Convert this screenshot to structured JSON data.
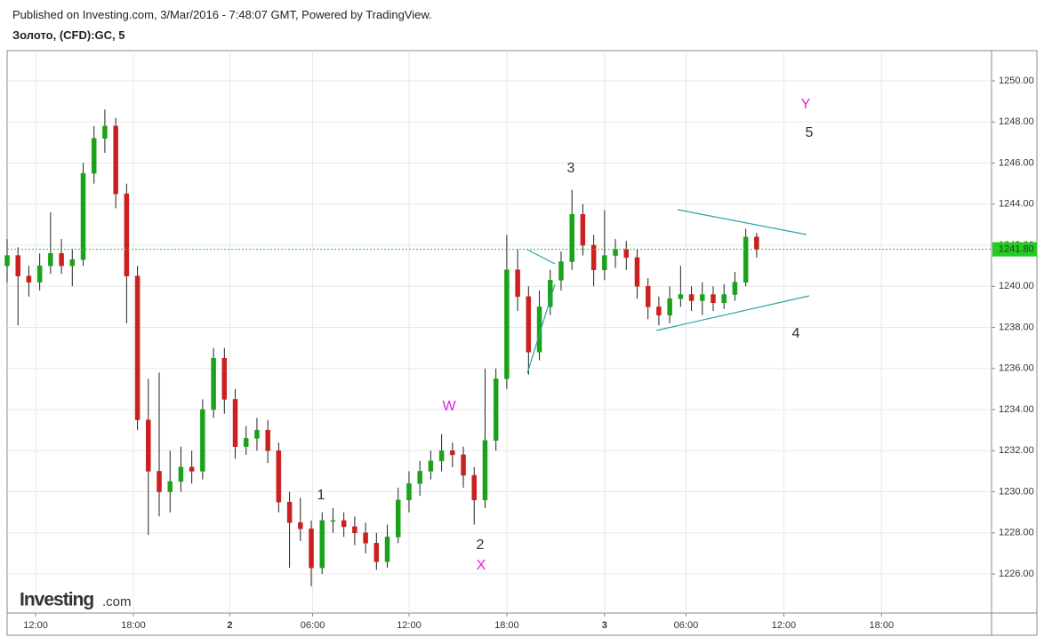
{
  "header": {
    "published": "Published on Investing.com, 3/Mar/2016 - 7:48:07 GMT, Powered by TradingView.",
    "symbol": "Золото, (CFD):GC, 5"
  },
  "logo": {
    "name": "Investing",
    "suffix": ".com"
  },
  "chart_data": {
    "type": "candlestick",
    "xlim": [
      0,
      725
    ],
    "xticks": [
      {
        "value": 21,
        "label": "12:00"
      },
      {
        "value": 93,
        "label": "18:00"
      },
      {
        "value": 164,
        "label": "2"
      },
      {
        "value": 225,
        "label": "06:00"
      },
      {
        "value": 296,
        "label": "12:00"
      },
      {
        "value": 368,
        "label": "18:00"
      },
      {
        "value": 440,
        "label": "3"
      },
      {
        "value": 500,
        "label": "06:00"
      },
      {
        "value": 572,
        "label": "12:00"
      },
      {
        "value": 644,
        "label": "18:00"
      }
    ],
    "ylim": [
      1224.1,
      1251.47
    ],
    "yticks": [
      {
        "value": 1226,
        "label": "1226.00"
      },
      {
        "value": 1228,
        "label": "1228.00"
      },
      {
        "value": 1230,
        "label": "1230.00"
      },
      {
        "value": 1232,
        "label": "1232.00"
      },
      {
        "value": 1234,
        "label": "1234.00"
      },
      {
        "value": 1236,
        "label": "1236.00"
      },
      {
        "value": 1238,
        "label": "1238.00"
      },
      {
        "value": 1240,
        "label": "1240.00"
      },
      {
        "value": 1242,
        "label": "1242.00"
      },
      {
        "value": 1244,
        "label": "1244.00"
      },
      {
        "value": 1246,
        "label": "1246.00"
      },
      {
        "value": 1248,
        "label": "1248.00"
      },
      {
        "value": 1250,
        "label": "1250.00"
      }
    ],
    "grid": true,
    "up_color": "#1aa31a",
    "down_color": "#cc2020",
    "last_price": {
      "value": 1241.8,
      "label": "1241.80"
    },
    "last_price_color": "#22cc22",
    "x": [
      0,
      8,
      16,
      24,
      32,
      40,
      48,
      56,
      64,
      72,
      80,
      88,
      96,
      104,
      112,
      120,
      128,
      136,
      144,
      152,
      160,
      168,
      176,
      184,
      192,
      200,
      208,
      216,
      224,
      232,
      240,
      248,
      256,
      264,
      272,
      280,
      288,
      296,
      304,
      312,
      320,
      328,
      336,
      344,
      352,
      360,
      368,
      376,
      384,
      392,
      400,
      408,
      416,
      424,
      432,
      440,
      448,
      456,
      464,
      472,
      480,
      488,
      496,
      504,
      512,
      520,
      528,
      536,
      544,
      552
    ],
    "open": [
      1241.0,
      1241.5,
      1240.5,
      1240.2,
      1241.0,
      1241.6,
      1241.0,
      1241.3,
      1245.5,
      1247.2,
      1247.8,
      1244.5,
      1240.5,
      1233.5,
      1231.0,
      1230.0,
      1230.5,
      1231.2,
      1231.0,
      1234.0,
      1236.5,
      1234.5,
      1232.2,
      1232.6,
      1233.0,
      1232.0,
      1229.5,
      1228.5,
      1228.2,
      1226.3,
      1228.6,
      1228.6,
      1228.3,
      1228.0,
      1227.5,
      1226.6,
      1227.8,
      1229.6,
      1230.4,
      1231.0,
      1231.5,
      1232.0,
      1231.8,
      1230.8,
      1229.6,
      1232.5,
      1235.5,
      1240.8,
      1239.5,
      1236.8,
      1239.0,
      1240.3,
      1241.2,
      1243.5,
      1242.0,
      1240.8,
      1241.5,
      1241.8,
      1241.4,
      1240.0,
      1239.0,
      1238.6,
      1239.4,
      1239.6,
      1239.3,
      1239.6,
      1239.2,
      1239.6,
      1240.2,
      1242.4
    ],
    "high": [
      1242.3,
      1241.9,
      1241.0,
      1241.6,
      1243.6,
      1242.3,
      1241.8,
      1246.0,
      1247.8,
      1248.6,
      1248.2,
      1245.0,
      1241.0,
      1235.5,
      1235.8,
      1232.0,
      1232.2,
      1232.0,
      1234.5,
      1237.0,
      1237.0,
      1235.0,
      1233.2,
      1233.6,
      1233.5,
      1232.4,
      1230.0,
      1229.7,
      1228.6,
      1229.0,
      1229.2,
      1229.0,
      1228.8,
      1228.5,
      1228.0,
      1228.4,
      1230.2,
      1231.0,
      1231.5,
      1232.0,
      1232.8,
      1232.4,
      1232.2,
      1231.2,
      1236.0,
      1236.0,
      1242.5,
      1241.8,
      1240.0,
      1239.8,
      1240.8,
      1241.7,
      1244.7,
      1244.0,
      1242.5,
      1243.7,
      1242.3,
      1242.2,
      1241.8,
      1240.4,
      1239.5,
      1240.0,
      1241.0,
      1240.0,
      1240.2,
      1240.0,
      1240.1,
      1240.7,
      1242.8,
      1242.6
    ],
    "low": [
      1240.2,
      1238.1,
      1239.5,
      1239.8,
      1240.6,
      1240.6,
      1240.0,
      1241.0,
      1245.0,
      1246.5,
      1243.8,
      1238.2,
      1233.0,
      1227.9,
      1228.8,
      1229.0,
      1230.0,
      1230.4,
      1230.6,
      1233.6,
      1233.8,
      1231.6,
      1231.8,
      1232.0,
      1231.4,
      1229.0,
      1226.3,
      1227.6,
      1225.4,
      1226.0,
      1228.0,
      1227.8,
      1227.4,
      1227.0,
      1226.2,
      1226.3,
      1227.5,
      1229.0,
      1229.8,
      1230.6,
      1231.0,
      1231.2,
      1230.2,
      1228.4,
      1229.2,
      1232.0,
      1235.0,
      1238.8,
      1235.7,
      1236.4,
      1238.6,
      1239.8,
      1240.8,
      1241.5,
      1240.0,
      1240.3,
      1240.9,
      1240.8,
      1239.4,
      1238.4,
      1238.1,
      1238.2,
      1239.0,
      1238.8,
      1238.6,
      1238.8,
      1238.9,
      1239.3,
      1240.0,
      1241.4
    ],
    "close": [
      1241.5,
      1240.5,
      1240.2,
      1241.0,
      1241.6,
      1241.0,
      1241.3,
      1245.5,
      1247.2,
      1247.8,
      1244.5,
      1240.5,
      1233.5,
      1231.0,
      1230.0,
      1230.5,
      1231.2,
      1231.0,
      1234.0,
      1236.5,
      1234.5,
      1232.2,
      1232.6,
      1233.0,
      1232.0,
      1229.5,
      1228.5,
      1228.2,
      1226.3,
      1228.6,
      1228.6,
      1228.3,
      1228.0,
      1227.5,
      1226.6,
      1227.8,
      1229.6,
      1230.4,
      1231.0,
      1231.5,
      1232.0,
      1231.8,
      1230.8,
      1229.6,
      1232.5,
      1235.5,
      1240.8,
      1239.5,
      1236.8,
      1239.0,
      1240.3,
      1241.2,
      1243.5,
      1242.0,
      1240.8,
      1241.5,
      1241.8,
      1241.4,
      1240.0,
      1239.0,
      1238.6,
      1239.4,
      1239.6,
      1239.3,
      1239.6,
      1239.2,
      1239.6,
      1240.2,
      1242.4,
      1241.8
    ],
    "annotations": [
      {
        "text": "Y",
        "color": "#e020e0"
      },
      {
        "text": "5",
        "color": "#333333"
      },
      {
        "text": "3",
        "color": "#333333"
      },
      {
        "text": "W",
        "color": "#e020e0"
      },
      {
        "text": "1",
        "color": "#333333"
      },
      {
        "text": "2",
        "color": "#333333"
      },
      {
        "text": "X",
        "color": "#e020e0"
      },
      {
        "text": "4",
        "color": "#333333"
      }
    ]
  }
}
